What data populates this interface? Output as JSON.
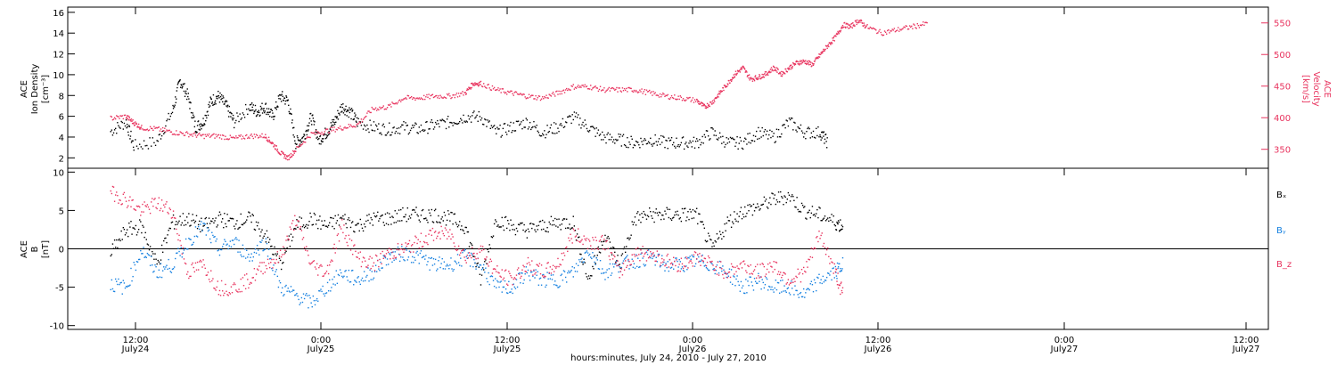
{
  "colors": {
    "black": "#000000",
    "pink": "#e8335e",
    "blue": "#1580e0"
  },
  "chart_data": [
    {
      "type": "scatter",
      "panel": "top",
      "left_axis": {
        "label_lines": [
          "ACE",
          "Ion Density",
          "[cm⁻³]"
        ],
        "range": [
          1,
          16.5
        ],
        "ticks": [
          2,
          4,
          6,
          8,
          10,
          12,
          14,
          16
        ]
      },
      "right_axis": {
        "label_lines": [
          "ACE",
          "Velocity",
          "[km/s]"
        ],
        "range": [
          320,
          575
        ],
        "ticks": [
          350,
          400,
          450,
          500,
          550
        ]
      },
      "series": [
        {
          "axis": "left",
          "color": "#000000",
          "points": [
            [
              0,
              4.6
            ],
            [
              2,
              5.5
            ],
            [
              3,
              3.2
            ],
            [
              6,
              3.6
            ],
            [
              8,
              6.5
            ],
            [
              9,
              9.5
            ],
            [
              10,
              8
            ],
            [
              11,
              5
            ],
            [
              12,
              5.5
            ],
            [
              13,
              7.5
            ],
            [
              14,
              8
            ],
            [
              15,
              7
            ],
            [
              16,
              5.5
            ],
            [
              18,
              7
            ],
            [
              19,
              6.5
            ],
            [
              20,
              7
            ],
            [
              21,
              6
            ],
            [
              22,
              8
            ],
            [
              23,
              7.5
            ],
            [
              24,
              3.5
            ],
            [
              25,
              4
            ],
            [
              26,
              6
            ],
            [
              27,
              3.8
            ],
            [
              28,
              4.5
            ],
            [
              29,
              5.5
            ],
            [
              30,
              7
            ],
            [
              31,
              6.5
            ],
            [
              32,
              5.5
            ],
            [
              34,
              5
            ],
            [
              36,
              4.8
            ],
            [
              38,
              5
            ],
            [
              40,
              4.8
            ],
            [
              42,
              5.2
            ],
            [
              44,
              5.5
            ],
            [
              46,
              6
            ],
            [
              48,
              6
            ],
            [
              50,
              4.5
            ],
            [
              52,
              5
            ],
            [
              54,
              5.5
            ],
            [
              56,
              4.5
            ],
            [
              58,
              5
            ],
            [
              60,
              6
            ],
            [
              62,
              5
            ],
            [
              64,
              4
            ],
            [
              66,
              3.8
            ],
            [
              68,
              3.5
            ],
            [
              70,
              3.8
            ],
            [
              72,
              3.5
            ],
            [
              74,
              3.5
            ],
            [
              76,
              3.5
            ],
            [
              78,
              4.5
            ],
            [
              80,
              3.5
            ],
            [
              82,
              3.5
            ],
            [
              84,
              4.5
            ],
            [
              86,
              4
            ],
            [
              88,
              5.5
            ],
            [
              90,
              4.5
            ],
            [
              92,
              4.5
            ],
            [
              93,
              3.5
            ]
          ]
        },
        {
          "axis": "right",
          "color": "#e8335e",
          "points": [
            [
              0,
              400
            ],
            [
              2,
              403
            ],
            [
              3,
              393
            ],
            [
              4,
              385
            ],
            [
              6,
              383
            ],
            [
              8,
              378
            ],
            [
              10,
              375
            ],
            [
              12,
              372
            ],
            [
              14,
              372
            ],
            [
              16,
              368
            ],
            [
              18,
              372
            ],
            [
              20,
              372
            ],
            [
              21,
              360
            ],
            [
              22,
              345
            ],
            [
              23,
              337
            ],
            [
              24,
              350
            ],
            [
              26,
              375
            ],
            [
              28,
              380
            ],
            [
              30,
              385
            ],
            [
              32,
              390
            ],
            [
              34,
              415
            ],
            [
              36,
              418
            ],
            [
              38,
              432
            ],
            [
              40,
              432
            ],
            [
              42,
              435
            ],
            [
              44,
              435
            ],
            [
              46,
              440
            ],
            [
              47,
              455
            ],
            [
              48,
              455
            ],
            [
              50,
              445
            ],
            [
              52,
              440
            ],
            [
              54,
              435
            ],
            [
              56,
              432
            ],
            [
              58,
              440
            ],
            [
              60,
              450
            ],
            [
              62,
              450
            ],
            [
              64,
              445
            ],
            [
              66,
              445
            ],
            [
              68,
              445
            ],
            [
              70,
              440
            ],
            [
              72,
              435
            ],
            [
              74,
              432
            ],
            [
              76,
              428
            ],
            [
              77,
              418
            ],
            [
              78,
              425
            ],
            [
              79,
              440
            ],
            [
              80,
              455
            ],
            [
              81,
              470
            ],
            [
              82,
              480
            ],
            [
              83,
              462
            ],
            [
              84,
              465
            ],
            [
              85,
              470
            ],
            [
              86,
              480
            ],
            [
              87,
              470
            ],
            [
              88,
              480
            ],
            [
              89,
              488
            ],
            [
              90,
              490
            ],
            [
              91,
              485
            ],
            [
              92,
              500
            ],
            [
              93,
              515
            ],
            [
              94,
              528
            ],
            [
              95,
              548
            ],
            [
              96,
              545
            ],
            [
              97,
              555
            ],
            [
              98,
              545
            ],
            [
              100,
              535
            ],
            [
              102,
              540
            ],
            [
              104,
              545
            ],
            [
              106,
              550
            ]
          ]
        }
      ]
    },
    {
      "type": "scatter",
      "panel": "bottom",
      "left_axis": {
        "label_lines": [
          "ACE",
          "B",
          "[nT]"
        ],
        "range": [
          -10.5,
          10.5
        ],
        "ticks": [
          -10,
          -5,
          0,
          5,
          10
        ]
      },
      "zero_line": true,
      "series": [
        {
          "name": "Bₓ",
          "color": "#000000",
          "points": [
            [
              0,
              -0.5
            ],
            [
              2,
              2.5
            ],
            [
              4,
              3
            ],
            [
              6,
              -2
            ],
            [
              8,
              3.5
            ],
            [
              10,
              4
            ],
            [
              12,
              3
            ],
            [
              14,
              4
            ],
            [
              16,
              3.5
            ],
            [
              18,
              4
            ],
            [
              20,
              2
            ],
            [
              22,
              -2
            ],
            [
              24,
              3
            ],
            [
              26,
              4
            ],
            [
              28,
              3
            ],
            [
              30,
              4
            ],
            [
              32,
              3
            ],
            [
              34,
              4
            ],
            [
              36,
              4
            ],
            [
              38,
              4.5
            ],
            [
              40,
              4.5
            ],
            [
              42,
              4.5
            ],
            [
              44,
              4
            ],
            [
              46,
              3
            ],
            [
              48,
              -4
            ],
            [
              50,
              4
            ],
            [
              52,
              3
            ],
            [
              54,
              2.5
            ],
            [
              56,
              3
            ],
            [
              58,
              3.5
            ],
            [
              60,
              3.5
            ],
            [
              62,
              -4
            ],
            [
              64,
              2
            ],
            [
              66,
              -2
            ],
            [
              68,
              4
            ],
            [
              70,
              4.5
            ],
            [
              72,
              4.5
            ],
            [
              74,
              4.5
            ],
            [
              76,
              4.5
            ],
            [
              78,
              0
            ],
            [
              80,
              3.5
            ],
            [
              82,
              5
            ],
            [
              84,
              5.5
            ],
            [
              86,
              6.5
            ],
            [
              88,
              7
            ],
            [
              90,
              5
            ],
            [
              92,
              4.5
            ],
            [
              94,
              3.5
            ],
            [
              95,
              3
            ]
          ]
        },
        {
          "name": "Bᵧ",
          "color": "#1580e0",
          "points": [
            [
              0,
              -4.5
            ],
            [
              2,
              -5
            ],
            [
              4,
              0
            ],
            [
              6,
              -3
            ],
            [
              8,
              -2
            ],
            [
              10,
              1
            ],
            [
              12,
              3
            ],
            [
              14,
              0
            ],
            [
              16,
              1
            ],
            [
              18,
              -1
            ],
            [
              20,
              1
            ],
            [
              22,
              -5
            ],
            [
              24,
              -6
            ],
            [
              26,
              -7
            ],
            [
              28,
              -5
            ],
            [
              30,
              -3
            ],
            [
              32,
              -4
            ],
            [
              34,
              -3
            ],
            [
              36,
              -1
            ],
            [
              38,
              -0.5
            ],
            [
              40,
              -1
            ],
            [
              42,
              -2
            ],
            [
              44,
              -2
            ],
            [
              46,
              -1
            ],
            [
              48,
              -2
            ],
            [
              50,
              -5
            ],
            [
              52,
              -5
            ],
            [
              54,
              -3
            ],
            [
              56,
              -4
            ],
            [
              58,
              -4
            ],
            [
              60,
              -3
            ],
            [
              62,
              0
            ],
            [
              64,
              -3
            ],
            [
              66,
              -2
            ],
            [
              68,
              -1.5
            ],
            [
              70,
              -1
            ],
            [
              72,
              -2
            ],
            [
              74,
              -2
            ],
            [
              76,
              -1.5
            ],
            [
              78,
              -2
            ],
            [
              80,
              -3
            ],
            [
              82,
              -5
            ],
            [
              84,
              -4
            ],
            [
              86,
              -5
            ],
            [
              88,
              -5
            ],
            [
              90,
              -6
            ],
            [
              92,
              -4
            ],
            [
              94,
              -3
            ],
            [
              95,
              -2
            ]
          ]
        },
        {
          "name": "B_z",
          "color": "#e8335e",
          "points": [
            [
              0,
              7.5
            ],
            [
              2,
              6.5
            ],
            [
              4,
              5
            ],
            [
              6,
              6
            ],
            [
              8,
              5
            ],
            [
              10,
              -3
            ],
            [
              12,
              -2
            ],
            [
              14,
              -5
            ],
            [
              16,
              -5
            ],
            [
              18,
              -4
            ],
            [
              20,
              -2
            ],
            [
              22,
              -1
            ],
            [
              24,
              4
            ],
            [
              26,
              -2
            ],
            [
              28,
              -3
            ],
            [
              30,
              3
            ],
            [
              32,
              -1
            ],
            [
              34,
              -2
            ],
            [
              36,
              -0.5
            ],
            [
              38,
              0
            ],
            [
              40,
              1
            ],
            [
              42,
              2
            ],
            [
              44,
              2
            ],
            [
              46,
              -1
            ],
            [
              48,
              0
            ],
            [
              50,
              -3
            ],
            [
              52,
              -4
            ],
            [
              54,
              -2
            ],
            [
              56,
              -3
            ],
            [
              58,
              -2
            ],
            [
              60,
              2
            ],
            [
              62,
              1
            ],
            [
              64,
              1
            ],
            [
              66,
              -3
            ],
            [
              68,
              -0.5
            ],
            [
              70,
              -0.5
            ],
            [
              72,
              -1.5
            ],
            [
              74,
              -2
            ],
            [
              76,
              -1
            ],
            [
              78,
              -2
            ],
            [
              80,
              -3
            ],
            [
              82,
              -2
            ],
            [
              84,
              -3
            ],
            [
              86,
              -2
            ],
            [
              88,
              -4
            ],
            [
              90,
              -3
            ],
            [
              92,
              2
            ],
            [
              94,
              -3
            ],
            [
              95,
              -6
            ]
          ]
        }
      ]
    }
  ],
  "time_axis": {
    "title": "hours:minutes, July 24, 2010 - July 27, 2010",
    "tick_labels": [
      {
        "time": "12:00",
        "date": "July24"
      },
      {
        "time": "0:00",
        "date": "July25"
      },
      {
        "time": "12:00",
        "date": "July25"
      },
      {
        "time": "0:00",
        "date": "July26"
      },
      {
        "time": "12:00",
        "date": "July26"
      },
      {
        "time": "0:00",
        "date": "July27"
      },
      {
        "time": "12:00",
        "date": "July27"
      }
    ]
  }
}
